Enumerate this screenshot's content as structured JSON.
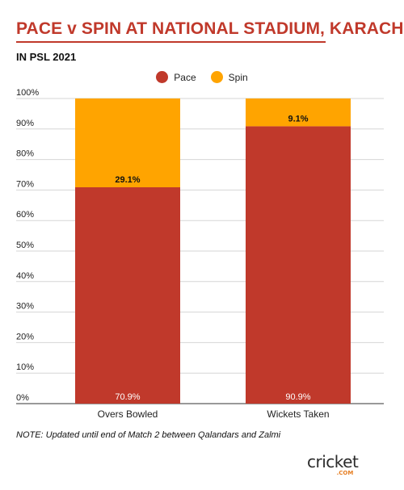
{
  "header": {
    "title": "PACE v SPIN AT NATIONAL STADIUM, KARACHI",
    "subtitle": "IN PSL 2021"
  },
  "note": "NOTE: Updated until end of Match 2 between Qalandars and Zalmi",
  "logo": {
    "word": "cricket",
    "suffix": ".COM"
  },
  "colors": {
    "title": "#c0392b",
    "pace": "#c0392b",
    "spin": "#ffa400",
    "grid": "#d6d6d6"
  },
  "chart_data": {
    "type": "bar",
    "stacked": true,
    "percent": true,
    "categories": [
      "Overs Bowled",
      "Wickets Taken"
    ],
    "series": [
      {
        "name": "Pace",
        "values": [
          70.9,
          90.9
        ],
        "labels": [
          "70.9%",
          "90.9%"
        ],
        "color": "#c0392b"
      },
      {
        "name": "Spin",
        "values": [
          29.1,
          9.1
        ],
        "labels": [
          "29.1%",
          "9.1%"
        ],
        "color": "#ffa400"
      }
    ],
    "yticks": [
      "0%",
      "10%",
      "20%",
      "30%",
      "40%",
      "50%",
      "60%",
      "70%",
      "80%",
      "90%",
      "100%"
    ],
    "ylim": [
      0,
      100
    ],
    "grid": true,
    "legend": "top-center"
  }
}
